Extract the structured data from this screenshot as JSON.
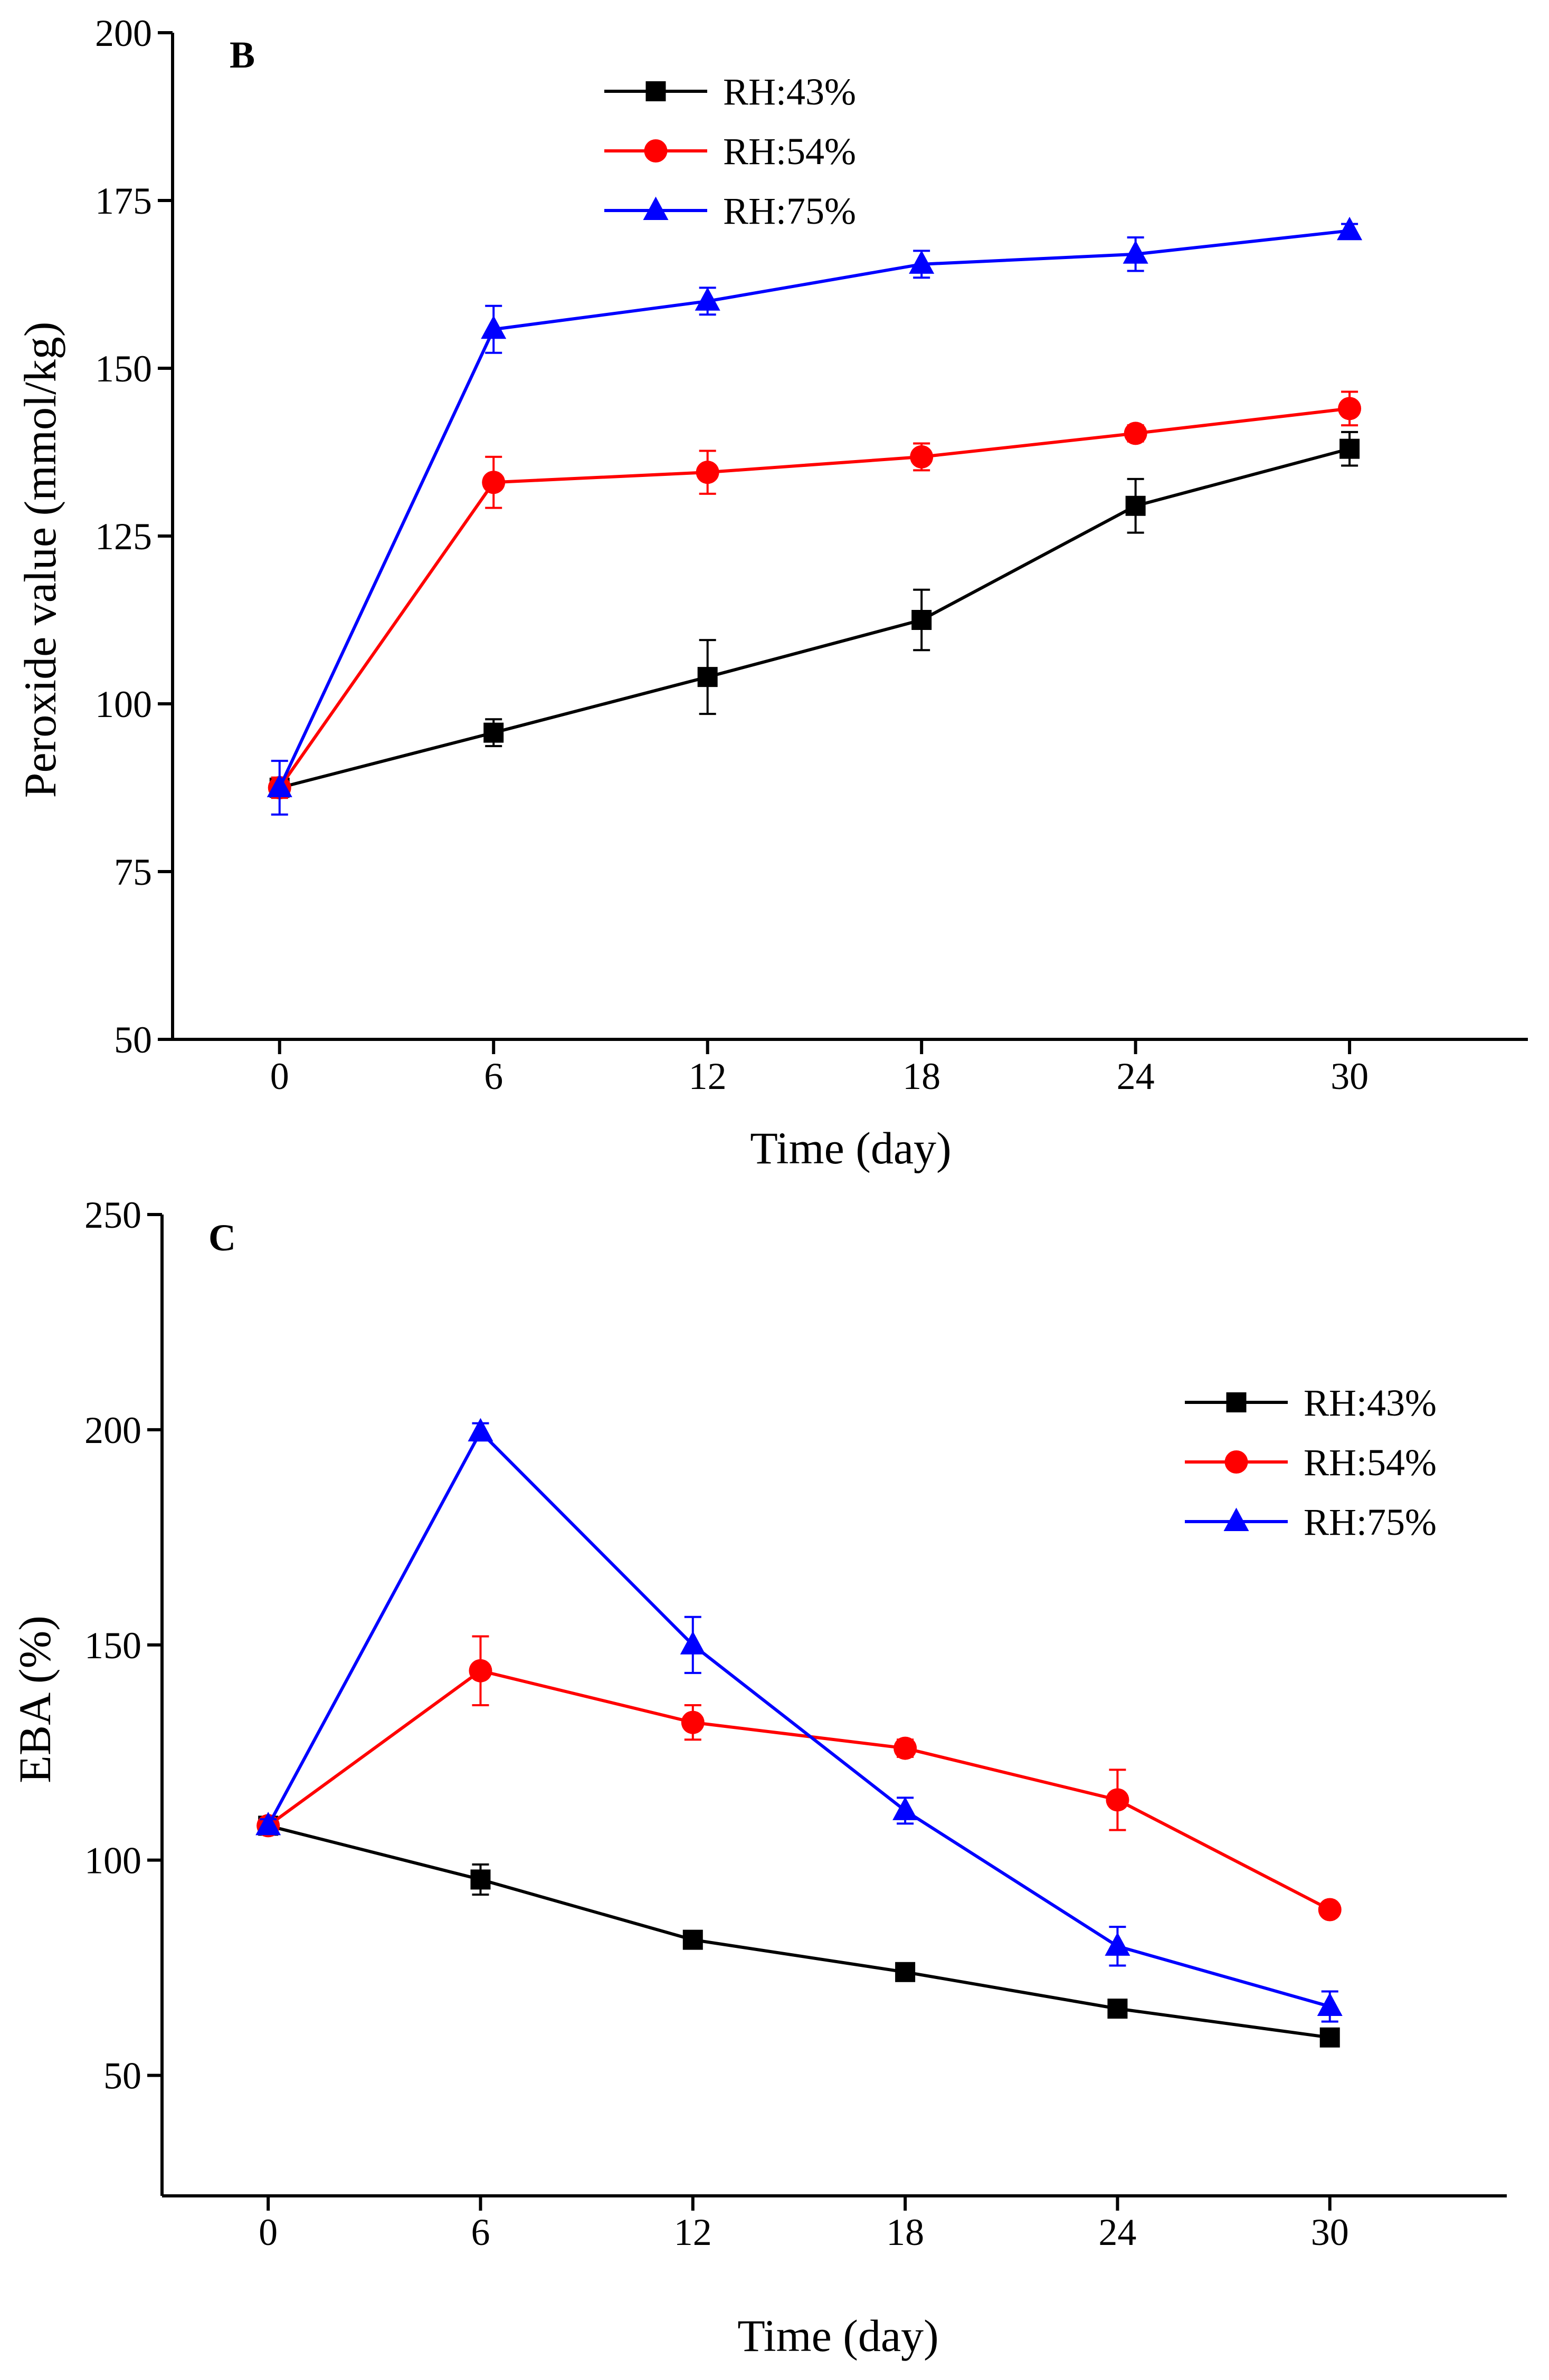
{
  "chart_data": [
    {
      "type": "line",
      "panel_label": "B",
      "title": "",
      "xlabel": "Time (day)",
      "ylabel": "Peroxide value (mmol/kg)",
      "x": [
        0,
        6,
        12,
        18,
        24,
        30
      ],
      "xticks": [
        "0",
        "6",
        "12",
        "18",
        "24",
        "30"
      ],
      "yticks": [
        "50",
        "75",
        "100",
        "125",
        "150",
        "175",
        "200"
      ],
      "ylim": [
        50,
        200
      ],
      "legend_position": "top-center",
      "grid": false,
      "series": [
        {
          "name": "RH:43%",
          "color": "#000000",
          "marker": "square",
          "values": [
            87.5,
            95.7,
            104.0,
            112.5,
            129.5,
            138.0
          ],
          "errors": [
            1.5,
            2.0,
            5.5,
            4.5,
            4.0,
            2.5
          ]
        },
        {
          "name": "RH:54%",
          "color": "#ff0000",
          "marker": "circle",
          "values": [
            87.5,
            133.0,
            134.5,
            136.8,
            140.3,
            144.0
          ],
          "errors": [
            1.5,
            3.8,
            3.2,
            2.0,
            1.2,
            2.5
          ]
        },
        {
          "name": "RH:75%",
          "color": "#0000ff",
          "marker": "triangle",
          "values": [
            87.5,
            155.8,
            160.0,
            165.5,
            167.0,
            170.5
          ],
          "errors": [
            4.0,
            3.5,
            2.0,
            2.0,
            2.5,
            1.0
          ]
        }
      ]
    },
    {
      "type": "line",
      "panel_label": "C",
      "title": "",
      "xlabel": "Time (day)",
      "ylabel": "EBA (%)",
      "x": [
        0,
        6,
        12,
        18,
        24,
        30
      ],
      "xticks": [
        "0",
        "6",
        "12",
        "18",
        "24",
        "30"
      ],
      "yticks": [
        "50",
        "100",
        "150",
        "200",
        "250"
      ],
      "ylim": [
        22,
        250
      ],
      "legend_position": "upper-right",
      "grid": false,
      "series": [
        {
          "name": "RH:43%",
          "color": "#000000",
          "marker": "square",
          "values": [
            108.0,
            95.5,
            81.5,
            74.0,
            65.5,
            58.8
          ],
          "errors": [
            1.5,
            3.5,
            1.5,
            1.5,
            1.5,
            1.5
          ]
        },
        {
          "name": "RH:54%",
          "color": "#ff0000",
          "marker": "circle",
          "values": [
            108.0,
            144.0,
            132.0,
            126.0,
            114.0,
            88.5
          ],
          "errors": [
            1.5,
            8.0,
            4.0,
            2.0,
            7.0,
            1.5
          ]
        },
        {
          "name": "RH:75%",
          "color": "#0000ff",
          "marker": "triangle",
          "values": [
            108.0,
            199.5,
            150.0,
            111.5,
            80.0,
            66.0
          ],
          "errors": [
            1.5,
            2.0,
            6.5,
            3.0,
            4.5,
            3.5
          ]
        }
      ]
    }
  ]
}
